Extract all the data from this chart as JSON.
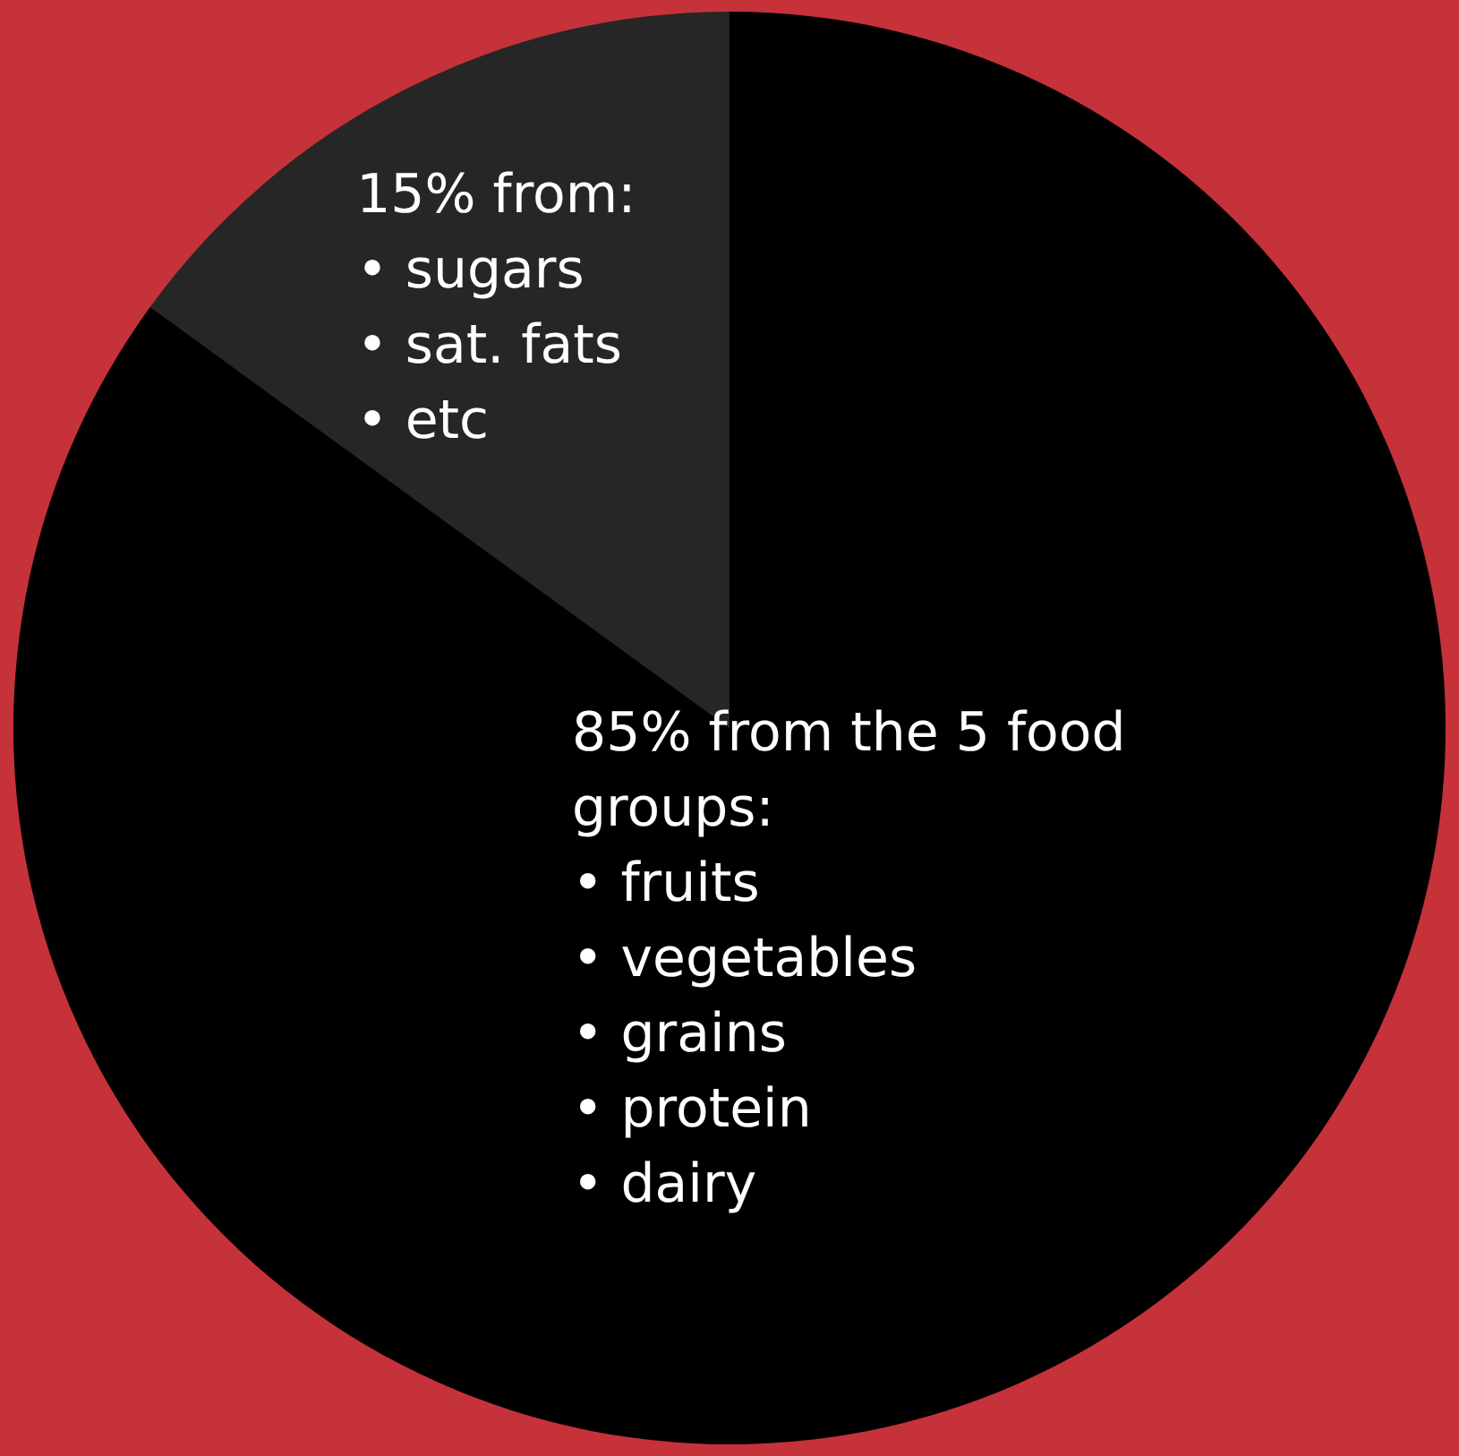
{
  "chart_data": {
    "type": "pie",
    "categories": [
      "15% from:\n• sugars\n• sat. fats\n• etc",
      "85% from the 5 food\ngroups:\n• fruits\n• vegetables\n• grains\n• protein\n• dairy"
    ],
    "values": [
      15,
      85
    ],
    "colors": [
      "#262626",
      "#000000"
    ]
  }
}
